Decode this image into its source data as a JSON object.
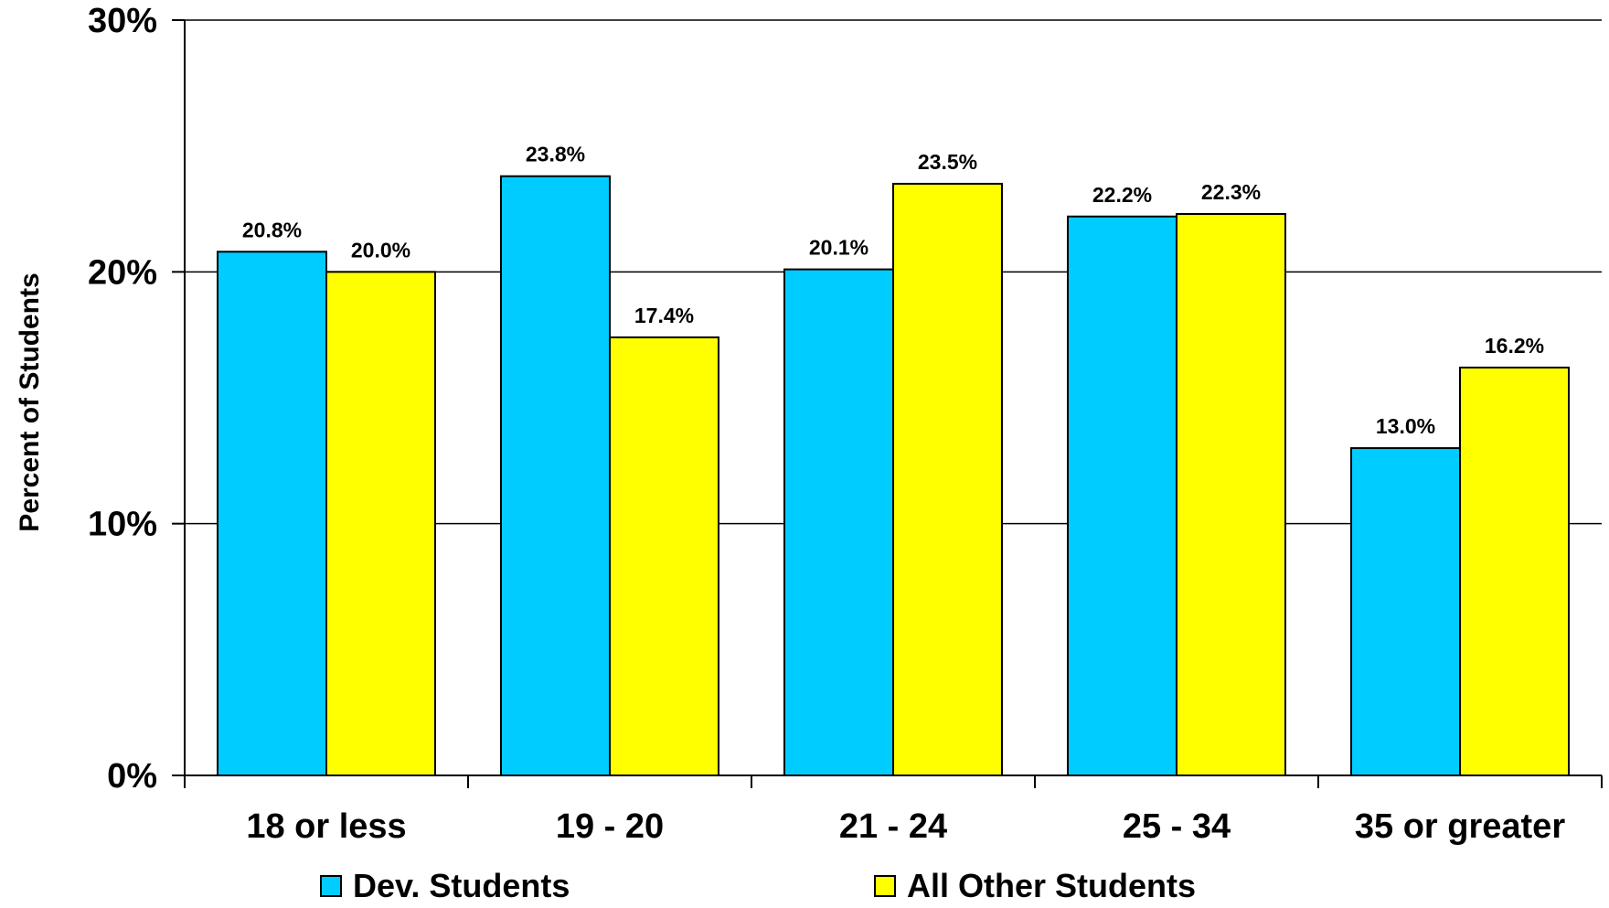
{
  "chart_data": {
    "type": "bar",
    "title": "",
    "xlabel": "",
    "ylabel": "Percent of Students",
    "categories": [
      "18 or less",
      "19 - 20",
      "21 - 24",
      "25 - 34",
      "35 or greater"
    ],
    "series": [
      {
        "name": "Dev. Students",
        "color": "#00CCFF",
        "values": [
          20.8,
          23.8,
          20.1,
          22.2,
          13.0
        ],
        "labels": [
          "20.8%",
          "23.8%",
          "20.1%",
          "22.2%",
          "13.0%"
        ]
      },
      {
        "name": "All Other Students",
        "color": "#FFFF00",
        "values": [
          20.0,
          17.4,
          23.5,
          22.3,
          16.2
        ],
        "labels": [
          "20.0%",
          "17.4%",
          "23.5%",
          "22.3%",
          "16.2%"
        ]
      }
    ],
    "ylim": [
      0,
      30
    ],
    "yticks": [
      0,
      10,
      20,
      30
    ],
    "ytick_labels": [
      "0%",
      "10%",
      "20%",
      "30%"
    ],
    "grid": true,
    "legend_position": "bottom"
  }
}
